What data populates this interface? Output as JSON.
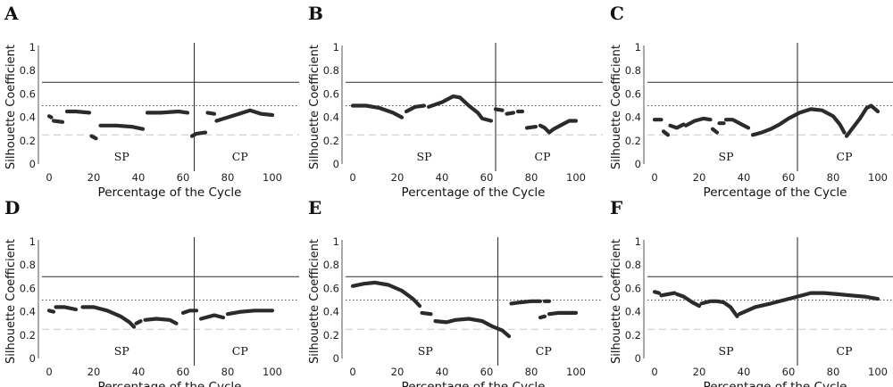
{
  "chart_data": [
    {
      "type": "scatter",
      "panel": "A",
      "xlabel": "Percentage of the Cycle",
      "ylabel": "Silhouette Coefficient",
      "xlim": [
        0,
        100
      ],
      "ylim": [
        0,
        1
      ],
      "xticks": [
        "0",
        "20",
        "40",
        "60",
        "80",
        "100"
      ],
      "yticks": [
        "0",
        "0.2",
        "0.4",
        "0.6",
        "0.8",
        "1"
      ],
      "phase_labels": [
        "SP",
        "CP"
      ],
      "phase_boundary_x": 65,
      "reference_lines": [
        {
          "y": 0.7,
          "style": "solid"
        },
        {
          "y": 0.5,
          "style": "dotted"
        },
        {
          "y": 0.25,
          "style": "dashed"
        }
      ],
      "segments": [
        [
          [
            0,
            0.41
          ],
          [
            1,
            0.4
          ]
        ],
        [
          [
            2,
            0.37
          ],
          [
            6,
            0.36
          ]
        ],
        [
          [
            8,
            0.45
          ],
          [
            12,
            0.45
          ],
          [
            18,
            0.44
          ]
        ],
        [
          [
            19,
            0.24
          ],
          [
            21,
            0.22
          ]
        ],
        [
          [
            23,
            0.33
          ],
          [
            30,
            0.33
          ],
          [
            37,
            0.32
          ],
          [
            42,
            0.3
          ]
        ],
        [
          [
            44,
            0.44
          ],
          [
            50,
            0.44
          ],
          [
            58,
            0.45
          ],
          [
            62,
            0.44
          ]
        ],
        [
          [
            64,
            0.24
          ],
          [
            66,
            0.26
          ],
          [
            70,
            0.27
          ]
        ],
        [
          [
            71,
            0.44
          ],
          [
            74,
            0.43
          ]
        ],
        [
          [
            75,
            0.37
          ],
          [
            80,
            0.4
          ],
          [
            85,
            0.43
          ],
          [
            90,
            0.46
          ],
          [
            95,
            0.43
          ],
          [
            100,
            0.42
          ]
        ]
      ]
    },
    {
      "type": "scatter",
      "panel": "B",
      "xlabel": "Percentage of the Cycle",
      "ylabel": "Silhouette Coefficient",
      "xlim": [
        0,
        100
      ],
      "ylim": [
        0,
        1
      ],
      "xticks": [
        "0",
        "20",
        "40",
        "60",
        "80",
        "100"
      ],
      "yticks": [
        "0",
        "0.2",
        "0.4",
        "0.6",
        "0.8",
        "1"
      ],
      "phase_labels": [
        "SP",
        "CP"
      ],
      "phase_boundary_x": 64,
      "reference_lines": [
        {
          "y": 0.7,
          "style": "solid"
        },
        {
          "y": 0.5,
          "style": "dotted"
        },
        {
          "y": 0.25,
          "style": "dashed"
        }
      ],
      "segments": [
        [
          [
            0,
            0.5
          ],
          [
            6,
            0.5
          ],
          [
            12,
            0.48
          ],
          [
            18,
            0.44
          ],
          [
            22,
            0.4
          ]
        ],
        [
          [
            24,
            0.45
          ],
          [
            28,
            0.49
          ],
          [
            32,
            0.5
          ]
        ],
        [
          [
            34,
            0.49
          ],
          [
            40,
            0.53
          ],
          [
            45,
            0.58
          ],
          [
            48,
            0.57
          ],
          [
            52,
            0.5
          ],
          [
            56,
            0.44
          ],
          [
            58,
            0.39
          ],
          [
            62,
            0.37
          ]
        ],
        [
          [
            64,
            0.47
          ],
          [
            67,
            0.46
          ]
        ],
        [
          [
            69,
            0.43
          ],
          [
            72,
            0.44
          ]
        ],
        [
          [
            74,
            0.45
          ],
          [
            76,
            0.45
          ]
        ],
        [
          [
            78,
            0.31
          ],
          [
            82,
            0.32
          ]
        ],
        [
          [
            84,
            0.33
          ],
          [
            86,
            0.31
          ],
          [
            88,
            0.27
          ],
          [
            90,
            0.3
          ],
          [
            93,
            0.33
          ],
          [
            97,
            0.37
          ],
          [
            100,
            0.37
          ]
        ]
      ]
    },
    {
      "type": "scatter",
      "panel": "C",
      "xlabel": "Percentage of the Cycle",
      "ylabel": "Silhouette Coefficient",
      "xlim": [
        0,
        100
      ],
      "ylim": [
        0,
        1
      ],
      "xticks": [
        "0",
        "20",
        "40",
        "60",
        "80",
        "100"
      ],
      "yticks": [
        "0",
        "0.2",
        "0.4",
        "0.6",
        "0.8",
        "1"
      ],
      "phase_labels": [
        "SP",
        "CP"
      ],
      "phase_boundary_x": 64,
      "reference_lines": [
        {
          "y": 0.7,
          "style": "solid"
        },
        {
          "y": 0.5,
          "style": "dotted"
        },
        {
          "y": 0.25,
          "style": "dashed"
        }
      ],
      "segments": [
        [
          [
            0,
            0.38
          ],
          [
            3,
            0.38
          ]
        ],
        [
          [
            4,
            0.28
          ],
          [
            6,
            0.25
          ]
        ],
        [
          [
            7,
            0.33
          ],
          [
            10,
            0.31
          ],
          [
            13,
            0.34
          ]
        ],
        [
          [
            14,
            0.33
          ],
          [
            18,
            0.37
          ],
          [
            22,
            0.39
          ],
          [
            25,
            0.38
          ]
        ],
        [
          [
            26,
            0.3
          ],
          [
            28,
            0.27
          ]
        ],
        [
          [
            29,
            0.35
          ],
          [
            31,
            0.35
          ]
        ],
        [
          [
            32,
            0.38
          ],
          [
            35,
            0.38
          ],
          [
            39,
            0.34
          ],
          [
            42,
            0.31
          ]
        ],
        [
          [
            44,
            0.25
          ],
          [
            48,
            0.27
          ],
          [
            52,
            0.3
          ],
          [
            56,
            0.34
          ],
          [
            60,
            0.39
          ],
          [
            65,
            0.44
          ],
          [
            70,
            0.47
          ],
          [
            75,
            0.46
          ],
          [
            80,
            0.41
          ],
          [
            83,
            0.34
          ],
          [
            85,
            0.27
          ]
        ],
        [
          [
            86,
            0.24
          ],
          [
            88,
            0.29
          ],
          [
            92,
            0.39
          ],
          [
            95,
            0.48
          ],
          [
            97,
            0.5
          ],
          [
            100,
            0.45
          ]
        ]
      ]
    },
    {
      "type": "scatter",
      "panel": "D",
      "xlabel": "Percentage of the Cycle",
      "ylabel": "Silhouette Coefficient",
      "xlim": [
        0,
        100
      ],
      "ylim": [
        0,
        1
      ],
      "xticks": [
        "0",
        "20",
        "40",
        "60",
        "80",
        "100"
      ],
      "yticks": [
        "0",
        "0.2",
        "0.4",
        "0.6",
        "0.8",
        "1"
      ],
      "phase_labels": [
        "SP",
        "CP"
      ],
      "phase_boundary_x": 65,
      "reference_lines": [
        {
          "y": 0.7,
          "style": "solid"
        },
        {
          "y": 0.5,
          "style": "dotted"
        },
        {
          "y": 0.25,
          "style": "dashed"
        }
      ],
      "segments": [
        [
          [
            0,
            0.41
          ],
          [
            2,
            0.4
          ]
        ],
        [
          [
            3,
            0.44
          ],
          [
            7,
            0.44
          ],
          [
            12,
            0.42
          ]
        ],
        [
          [
            15,
            0.44
          ],
          [
            20,
            0.44
          ],
          [
            26,
            0.41
          ],
          [
            32,
            0.36
          ],
          [
            36,
            0.31
          ],
          [
            38,
            0.27
          ]
        ],
        [
          [
            39,
            0.3
          ],
          [
            41,
            0.32
          ]
        ],
        [
          [
            43,
            0.33
          ],
          [
            48,
            0.34
          ],
          [
            54,
            0.33
          ],
          [
            57,
            0.3
          ]
        ],
        [
          [
            60,
            0.39
          ],
          [
            63,
            0.41
          ],
          [
            66,
            0.41
          ]
        ],
        [
          [
            68,
            0.34
          ],
          [
            74,
            0.37
          ],
          [
            78,
            0.35
          ]
        ],
        [
          [
            80,
            0.38
          ],
          [
            86,
            0.4
          ],
          [
            92,
            0.41
          ],
          [
            100,
            0.41
          ]
        ]
      ]
    },
    {
      "type": "scatter",
      "panel": "E",
      "xlabel": "Percentage of the Cycle",
      "ylabel": "Silhouette Coefficient",
      "xlim": [
        0,
        100
      ],
      "ylim": [
        0,
        1
      ],
      "xticks": [
        "0",
        "20",
        "40",
        "60",
        "80",
        "100"
      ],
      "yticks": [
        "0",
        "0.2",
        "0.4",
        "0.6",
        "0.8",
        "1"
      ],
      "phase_labels": [
        "SP",
        "CP"
      ],
      "phase_boundary_x": 65,
      "reference_lines": [
        {
          "y": 0.7,
          "style": "solid"
        },
        {
          "y": 0.5,
          "style": "dotted"
        },
        {
          "y": 0.25,
          "style": "dashed"
        }
      ],
      "segments": [
        [
          [
            0,
            0.62
          ],
          [
            5,
            0.64
          ],
          [
            10,
            0.65
          ],
          [
            16,
            0.63
          ],
          [
            22,
            0.58
          ],
          [
            27,
            0.51
          ],
          [
            30,
            0.45
          ]
        ],
        [
          [
            31,
            0.39
          ],
          [
            35,
            0.38
          ]
        ],
        [
          [
            37,
            0.32
          ],
          [
            42,
            0.31
          ],
          [
            46,
            0.33
          ],
          [
            52,
            0.34
          ],
          [
            58,
            0.32
          ],
          [
            63,
            0.27
          ],
          [
            67,
            0.24
          ],
          [
            70,
            0.19
          ]
        ],
        [
          [
            71,
            0.47
          ],
          [
            75,
            0.48
          ],
          [
            80,
            0.49
          ],
          [
            84,
            0.49
          ]
        ],
        [
          [
            86,
            0.49
          ],
          [
            88,
            0.49
          ]
        ],
        [
          [
            84,
            0.35
          ],
          [
            86,
            0.36
          ]
        ],
        [
          [
            88,
            0.38
          ],
          [
            92,
            0.39
          ],
          [
            100,
            0.39
          ]
        ]
      ]
    },
    {
      "type": "scatter",
      "panel": "F",
      "xlabel": "Percentage of the Cycle",
      "ylabel": "Silhouette Coefficient",
      "xlim": [
        0,
        100
      ],
      "ylim": [
        0,
        1
      ],
      "xticks": [
        "0",
        "20",
        "40",
        "60",
        "80",
        "100"
      ],
      "yticks": [
        "0",
        "0.2",
        "0.4",
        "0.6",
        "0.8",
        "1"
      ],
      "phase_labels": [
        "SP",
        "CP"
      ],
      "phase_boundary_x": 64,
      "reference_lines": [
        {
          "y": 0.7,
          "style": "solid"
        },
        {
          "y": 0.5,
          "style": "dotted"
        },
        {
          "y": 0.25,
          "style": "dashed"
        }
      ],
      "segments": [
        [
          [
            0,
            0.57
          ],
          [
            2,
            0.56
          ]
        ],
        [
          [
            3,
            0.54
          ],
          [
            6,
            0.55
          ],
          [
            9,
            0.56
          ]
        ],
        [
          [
            10,
            0.55
          ],
          [
            13,
            0.53
          ],
          [
            17,
            0.48
          ],
          [
            20,
            0.45
          ]
        ],
        [
          [
            21,
            0.47
          ],
          [
            25,
            0.49
          ],
          [
            28,
            0.49
          ],
          [
            31,
            0.48
          ],
          [
            34,
            0.44
          ],
          [
            37,
            0.36
          ]
        ],
        [
          [
            38,
            0.38
          ],
          [
            45,
            0.44
          ],
          [
            52,
            0.47
          ],
          [
            58,
            0.5
          ],
          [
            64,
            0.53
          ],
          [
            70,
            0.56
          ],
          [
            76,
            0.56
          ],
          [
            82,
            0.55
          ],
          [
            88,
            0.54
          ],
          [
            94,
            0.53
          ],
          [
            100,
            0.51
          ]
        ]
      ]
    }
  ]
}
